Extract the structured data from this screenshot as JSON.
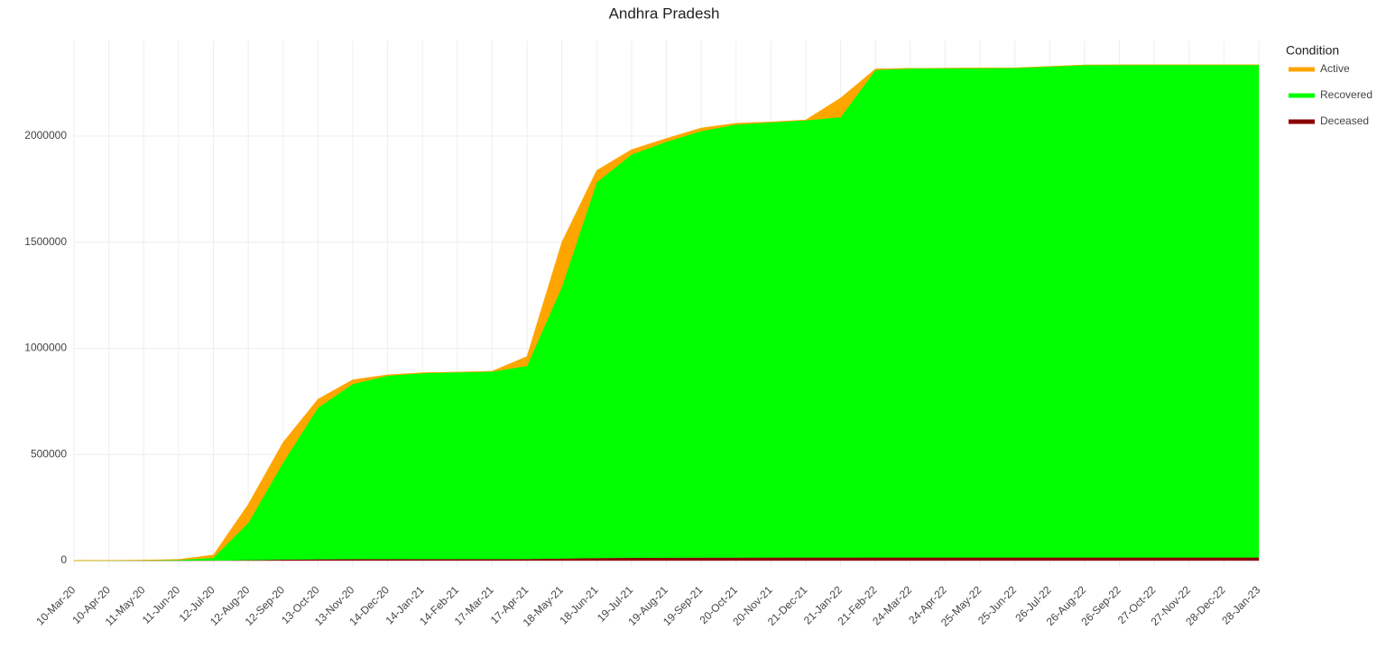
{
  "chart_data": {
    "type": "stacked_area",
    "title": "Andhra Pradesh",
    "legend_title": "Condition",
    "legend_position": "right",
    "categories": [
      "10-Mar-20",
      "10-Apr-20",
      "11-May-20",
      "11-Jun-20",
      "12-Jul-20",
      "12-Aug-20",
      "12-Sep-20",
      "13-Oct-20",
      "13-Nov-20",
      "14-Dec-20",
      "14-Jan-21",
      "14-Feb-21",
      "17-Mar-21",
      "17-Apr-21",
      "18-May-21",
      "18-Jun-21",
      "19-Jul-21",
      "19-Aug-21",
      "19-Sep-21",
      "20-Oct-21",
      "20-Nov-21",
      "21-Dec-21",
      "21-Jan-22",
      "21-Feb-22",
      "24-Mar-22",
      "24-Apr-22",
      "25-May-22",
      "25-Jun-22",
      "26-Jul-22",
      "26-Aug-22",
      "26-Sep-22",
      "27-Oct-22",
      "27-Nov-22",
      "28-Dec-22",
      "28-Jan-23"
    ],
    "series": [
      {
        "name": "Deceased",
        "color": "#8b0000",
        "values": [
          0,
          10,
          50,
          80,
          400,
          2400,
          4800,
          6200,
          6900,
          7060,
          7140,
          7160,
          7200,
          7500,
          9700,
          12200,
          13200,
          13700,
          14100,
          14300,
          14400,
          14500,
          14500,
          14700,
          14730,
          14730,
          14730,
          14730,
          14730,
          14730,
          14730,
          14730,
          14730,
          14730,
          14730
        ]
      },
      {
        "name": "Recovered",
        "color": "#00ff00",
        "values": [
          0,
          10,
          1000,
          3000,
          13000,
          175000,
          457000,
          714000,
          825000,
          864000,
          876000,
          880000,
          883000,
          910000,
          1280000,
          1770000,
          1900000,
          1960000,
          2010000,
          2040000,
          2050000,
          2060000,
          2075000,
          2297000,
          2304000,
          2305000,
          2306000,
          2306500,
          2313000,
          2320000,
          2320500,
          2321000,
          2321000,
          2321000,
          2321000
        ]
      },
      {
        "name": "Active",
        "color": "#ffa500",
        "values": [
          0,
          400,
          1000,
          2000,
          13000,
          87000,
          95000,
          40000,
          20000,
          4000,
          2000,
          700,
          2000,
          44000,
          210000,
          56000,
          23000,
          15000,
          14000,
          6000,
          2500,
          1500,
          90000,
          5000,
          500,
          100,
          50,
          20,
          500,
          200,
          20,
          10,
          5,
          5,
          0
        ]
      }
    ],
    "legend_order": [
      2,
      1,
      0
    ],
    "ylim": [
      -30000,
      2450000
    ],
    "yticks": [
      0,
      500000,
      1000000,
      1500000,
      2000000
    ],
    "grid": true
  }
}
